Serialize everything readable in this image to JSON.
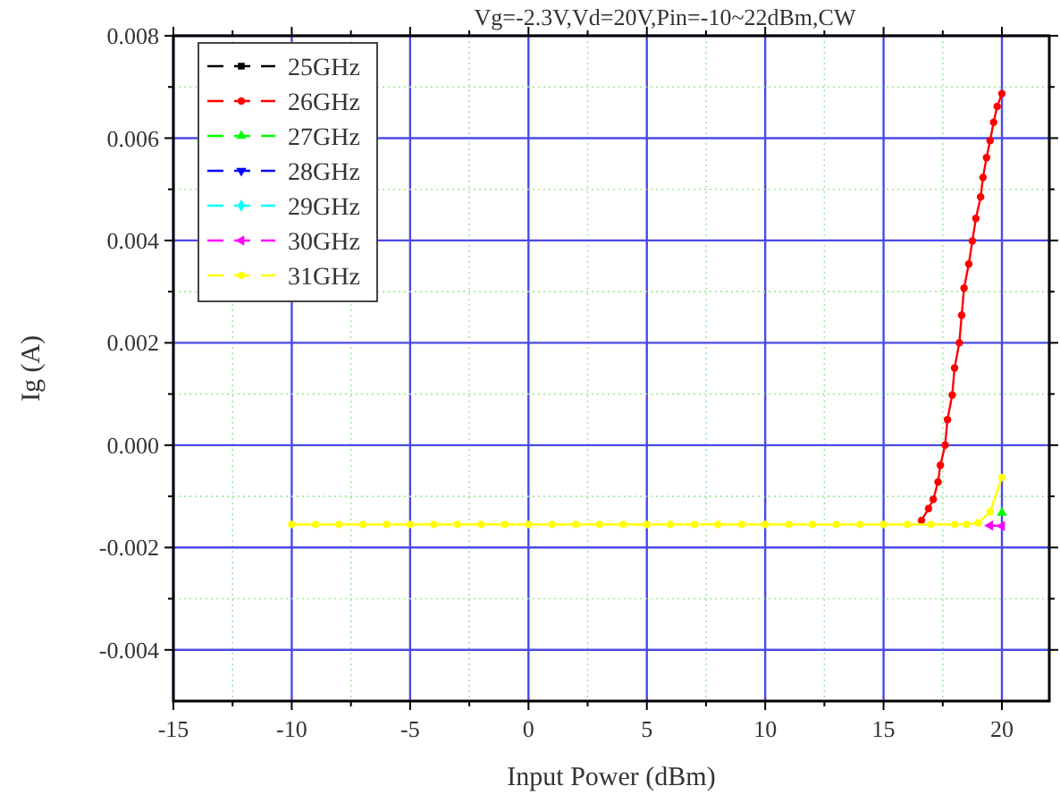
{
  "chart_data": {
    "type": "line",
    "title": "Vg=-2.3V,Vd=20V,Pin=-10~22dBm,CW",
    "xlabel": "Input Power (dBm)",
    "ylabel": "Ig (A)",
    "xlim": [
      -15,
      22
    ],
    "ylim": [
      -0.005,
      0.008
    ],
    "xticks": [
      -15,
      {
        "value": -12.5,
        "label": null
      },
      -10,
      {
        "value": -7.5,
        "label": null
      },
      -5,
      {
        "value": -2.5,
        "label": null
      },
      0,
      {
        "value": 2.5,
        "label": null
      },
      5,
      {
        "value": 7.5,
        "label": null
      },
      10,
      {
        "value": 12.5,
        "label": null
      },
      15,
      {
        "value": 17.5,
        "label": null
      },
      20
    ],
    "yticks": [
      {
        "value": -0.004,
        "label": "-0.004"
      },
      {
        "value": -0.003,
        "label": null
      },
      {
        "value": -0.002,
        "label": "-0.002"
      },
      {
        "value": -0.001,
        "label": null
      },
      {
        "value": 0,
        "label": "0.000"
      },
      {
        "value": 0.001,
        "label": null
      },
      {
        "value": 0.002,
        "label": "0.002"
      },
      {
        "value": 0.003,
        "label": null
      },
      {
        "value": 0.004,
        "label": "0.004"
      },
      {
        "value": 0.005,
        "label": null
      },
      {
        "value": 0.006,
        "label": "0.006"
      },
      {
        "value": 0.007,
        "label": null
      },
      {
        "value": 0.008,
        "label": "0.008"
      }
    ],
    "grid": true,
    "legend": "top left",
    "line_style": "solid",
    "x": [
      -10,
      -9,
      -8,
      -7,
      -6,
      -5,
      -4,
      -3,
      -2,
      -1,
      0,
      1,
      2,
      3,
      4,
      5,
      6,
      7,
      8,
      9,
      10,
      11,
      12,
      13,
      14,
      15,
      16,
      17,
      18,
      18.5,
      19,
      19.5,
      20
    ],
    "series": [
      {
        "name": "25GHz",
        "color": "#000000",
        "marker": "square",
        "values": [
          null,
          null,
          null,
          null,
          null,
          null,
          null,
          null,
          null,
          null,
          null,
          null,
          null,
          null,
          null,
          null,
          null,
          null,
          null,
          null,
          null,
          null,
          null,
          null,
          null,
          null,
          null,
          null,
          null,
          null,
          null,
          null,
          null
        ]
      },
      {
        "name": "26GHz",
        "color": "#ff0000",
        "marker": "circle",
        "x": [
          16.6,
          16.9,
          17.1,
          17.3,
          17.4,
          17.6,
          17.7,
          17.9,
          18,
          18.2,
          18.3,
          18.4,
          18.6,
          18.75,
          18.9,
          19.1,
          19.2,
          19.35,
          19.5,
          19.65,
          19.8,
          20
        ],
        "values": [
          -0.00147,
          -0.00124,
          -0.00106,
          -0.00072,
          -0.00039,
          0.0,
          0.0005,
          0.00098,
          0.00151,
          0.002,
          0.00254,
          0.00307,
          0.00354,
          0.00399,
          0.00443,
          0.00485,
          0.00523,
          0.00562,
          0.00595,
          0.00631,
          0.00662,
          0.00687
        ]
      },
      {
        "name": "27GHz",
        "color": "#00ff00",
        "marker": "triangle",
        "values": [
          null,
          null,
          null,
          null,
          null,
          null,
          null,
          null,
          null,
          null,
          null,
          null,
          null,
          null,
          null,
          null,
          null,
          null,
          null,
          null,
          null,
          null,
          null,
          null,
          null,
          null,
          null,
          null,
          null,
          null,
          null,
          null,
          -0.00132
        ]
      },
      {
        "name": "28GHz",
        "color": "#0000ff",
        "marker": "triangle-down",
        "values": [
          null,
          null,
          null,
          null,
          null,
          null,
          null,
          null,
          null,
          null,
          null,
          null,
          null,
          null,
          null,
          null,
          null,
          null,
          null,
          null,
          null,
          null,
          null,
          null,
          null,
          null,
          null,
          null,
          null,
          null,
          null,
          null,
          null
        ]
      },
      {
        "name": "29GHz",
        "color": "#00ffff",
        "marker": "diamond",
        "values": [
          null,
          null,
          null,
          null,
          null,
          null,
          null,
          null,
          null,
          null,
          null,
          null,
          null,
          null,
          null,
          null,
          null,
          null,
          null,
          null,
          null,
          null,
          null,
          null,
          null,
          null,
          null,
          null,
          null,
          null,
          null,
          null,
          null
        ]
      },
      {
        "name": "30GHz",
        "color": "#ff00ff",
        "marker": "triangle-left",
        "values": [
          null,
          null,
          null,
          null,
          null,
          null,
          null,
          null,
          null,
          null,
          null,
          null,
          null,
          null,
          null,
          null,
          null,
          null,
          null,
          null,
          null,
          null,
          null,
          null,
          null,
          null,
          null,
          null,
          null,
          null,
          null,
          -0.00157,
          -0.00158
        ]
      },
      {
        "name": "31GHz",
        "color": "#ffff00",
        "marker": "circle",
        "values": [
          -0.00155,
          -0.00155,
          -0.00155,
          -0.00155,
          -0.00155,
          -0.00155,
          -0.00155,
          -0.00155,
          -0.00155,
          -0.00155,
          -0.00155,
          -0.00155,
          -0.00155,
          -0.00155,
          -0.00155,
          -0.00155,
          -0.00155,
          -0.00155,
          -0.00155,
          -0.00155,
          -0.00155,
          -0.00155,
          -0.00155,
          -0.00155,
          -0.00155,
          -0.00155,
          -0.00155,
          -0.00155,
          -0.00155,
          -0.00155,
          -0.00152,
          -0.0013,
          -0.00063
        ]
      }
    ]
  }
}
